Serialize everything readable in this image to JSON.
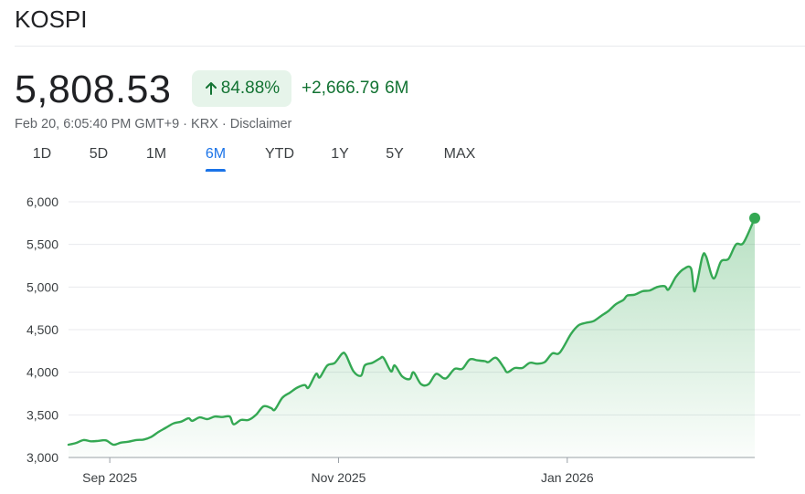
{
  "header": {
    "title": "KOSPI"
  },
  "quote": {
    "price": "5,808.53",
    "change_percent": "84.88%",
    "change_value": "+2,666.79",
    "change_period": "6M",
    "meta": "Feb 20, 6:05:40 PM GMT+9 · KRX · Disclaimer"
  },
  "tabs": [
    {
      "label": "1D",
      "active": false
    },
    {
      "label": "5D",
      "active": false
    },
    {
      "label": "1M",
      "active": false
    },
    {
      "label": "6M",
      "active": true
    },
    {
      "label": "YTD",
      "active": false
    },
    {
      "label": "1Y",
      "active": false
    },
    {
      "label": "5Y",
      "active": false
    },
    {
      "label": "MAX",
      "active": false
    }
  ],
  "colors": {
    "up": "#137333",
    "line": "#34a853",
    "accent": "#1a73e8"
  },
  "chart_data": {
    "type": "area",
    "title": "",
    "xlabel": "",
    "ylabel": "",
    "ylim": [
      3000,
      6000
    ],
    "yticks": [
      6000,
      5500,
      5000,
      4500,
      4000,
      3500,
      3000
    ],
    "ytick_labels": [
      "6,000",
      "5,500",
      "5,000",
      "4,500",
      "4,000",
      "3,500",
      "3,000"
    ],
    "xlim": [
      "2025-08-21",
      "2026-02-20"
    ],
    "xticks": [
      {
        "date": "2025-09-01",
        "label": "Sep 2025"
      },
      {
        "date": "2025-11-01",
        "label": "Nov 2025"
      },
      {
        "date": "2026-01-01",
        "label": "Jan 2026"
      }
    ],
    "grid": true,
    "series": [
      {
        "points": [
          [
            "2025-08-21",
            3150
          ],
          [
            "2025-08-23",
            3170
          ],
          [
            "2025-08-25",
            3205
          ],
          [
            "2025-08-27",
            3190
          ],
          [
            "2025-08-29",
            3195
          ],
          [
            "2025-08-31",
            3200
          ],
          [
            "2025-09-02",
            3150
          ],
          [
            "2025-09-04",
            3175
          ],
          [
            "2025-09-06",
            3185
          ],
          [
            "2025-09-08",
            3205
          ],
          [
            "2025-09-10",
            3210
          ],
          [
            "2025-09-12",
            3240
          ],
          [
            "2025-09-14",
            3300
          ],
          [
            "2025-09-16",
            3350
          ],
          [
            "2025-09-18",
            3400
          ],
          [
            "2025-09-20",
            3420
          ],
          [
            "2025-09-22",
            3460
          ],
          [
            "2025-09-23",
            3430
          ],
          [
            "2025-09-25",
            3470
          ],
          [
            "2025-09-27",
            3450
          ],
          [
            "2025-09-29",
            3480
          ],
          [
            "2025-10-01",
            3475
          ],
          [
            "2025-10-03",
            3480
          ],
          [
            "2025-10-04",
            3390
          ],
          [
            "2025-10-06",
            3440
          ],
          [
            "2025-10-08",
            3440
          ],
          [
            "2025-10-10",
            3500
          ],
          [
            "2025-10-12",
            3600
          ],
          [
            "2025-10-14",
            3580
          ],
          [
            "2025-10-15",
            3560
          ],
          [
            "2025-10-17",
            3700
          ],
          [
            "2025-10-19",
            3760
          ],
          [
            "2025-10-21",
            3820
          ],
          [
            "2025-10-23",
            3850
          ],
          [
            "2025-10-24",
            3820
          ],
          [
            "2025-10-26",
            3980
          ],
          [
            "2025-10-27",
            3940
          ],
          [
            "2025-10-29",
            4080
          ],
          [
            "2025-10-31",
            4110
          ],
          [
            "2025-11-02",
            4220
          ],
          [
            "2025-11-03",
            4200
          ],
          [
            "2025-11-05",
            4010
          ],
          [
            "2025-11-07",
            3960
          ],
          [
            "2025-11-08",
            4080
          ],
          [
            "2025-11-10",
            4110
          ],
          [
            "2025-11-12",
            4160
          ],
          [
            "2025-11-13",
            4170
          ],
          [
            "2025-11-15",
            4010
          ],
          [
            "2025-11-16",
            4080
          ],
          [
            "2025-11-18",
            3950
          ],
          [
            "2025-11-20",
            3920
          ],
          [
            "2025-11-21",
            4000
          ],
          [
            "2025-11-23",
            3860
          ],
          [
            "2025-11-25",
            3860
          ],
          [
            "2025-11-27",
            3980
          ],
          [
            "2025-11-29",
            3930
          ],
          [
            "2025-11-30",
            3940
          ],
          [
            "2025-12-02",
            4040
          ],
          [
            "2025-12-04",
            4040
          ],
          [
            "2025-12-06",
            4150
          ],
          [
            "2025-12-08",
            4140
          ],
          [
            "2025-12-10",
            4130
          ],
          [
            "2025-12-11",
            4120
          ],
          [
            "2025-12-13",
            4170
          ],
          [
            "2025-12-15",
            4060
          ],
          [
            "2025-12-16",
            4000
          ],
          [
            "2025-12-18",
            4050
          ],
          [
            "2025-12-20",
            4050
          ],
          [
            "2025-12-22",
            4110
          ],
          [
            "2025-12-24",
            4100
          ],
          [
            "2025-12-26",
            4120
          ],
          [
            "2025-12-28",
            4220
          ],
          [
            "2025-12-30",
            4230
          ],
          [
            "2026-01-02",
            4450
          ],
          [
            "2026-01-04",
            4550
          ],
          [
            "2026-01-06",
            4580
          ],
          [
            "2026-01-08",
            4600
          ],
          [
            "2026-01-10",
            4660
          ],
          [
            "2026-01-12",
            4720
          ],
          [
            "2026-01-14",
            4800
          ],
          [
            "2026-01-16",
            4850
          ],
          [
            "2026-01-17",
            4900
          ],
          [
            "2026-01-19",
            4910
          ],
          [
            "2026-01-21",
            4950
          ],
          [
            "2026-01-23",
            4960
          ],
          [
            "2026-01-25",
            5000
          ],
          [
            "2026-01-27",
            5010
          ],
          [
            "2026-01-28",
            4970
          ],
          [
            "2026-01-30",
            5120
          ],
          [
            "2026-02-01",
            5210
          ],
          [
            "2026-02-03",
            5220
          ],
          [
            "2026-02-04",
            4950
          ],
          [
            "2026-02-06",
            5350
          ],
          [
            "2026-02-07",
            5360
          ],
          [
            "2026-02-09",
            5100
          ],
          [
            "2026-02-11",
            5300
          ],
          [
            "2026-02-13",
            5330
          ],
          [
            "2026-02-15",
            5500
          ],
          [
            "2026-02-17",
            5520
          ],
          [
            "2026-02-20",
            5808.53
          ]
        ]
      }
    ]
  }
}
